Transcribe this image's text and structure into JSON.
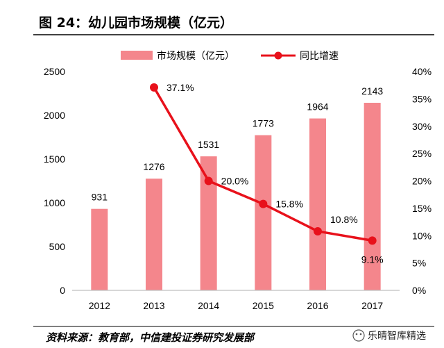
{
  "chart_data": {
    "type": "bar",
    "title": "图 24：幼儿园市场规模（亿元）",
    "categories": [
      "2012",
      "2013",
      "2014",
      "2015",
      "2016",
      "2017"
    ],
    "series": [
      {
        "name": "市场规模（亿元）",
        "type": "bar",
        "axis": "left",
        "values": [
          931,
          1276,
          1531,
          1773,
          1964,
          2143
        ]
      },
      {
        "name": "同比增速",
        "type": "line",
        "axis": "right",
        "values": [
          null,
          37.1,
          20.0,
          15.8,
          10.8,
          9.1
        ]
      }
    ],
    "bar_labels": [
      "931",
      "1276",
      "1531",
      "1773",
      "1964",
      "2143"
    ],
    "line_labels": [
      "",
      "37.1%",
      "20.0%",
      "15.8%",
      "10.8%",
      "9.1%"
    ],
    "y_left": {
      "min": 0,
      "max": 2500,
      "ticks": [
        "0",
        "500",
        "1000",
        "1500",
        "2000",
        "2500"
      ]
    },
    "y_right": {
      "min": 0,
      "max": 40,
      "ticks": [
        "0%",
        "5%",
        "10%",
        "15%",
        "20%",
        "25%",
        "30%",
        "35%",
        "40%"
      ]
    },
    "legend_position": "top",
    "grid": false
  },
  "source": "资料来源：教育部，中信建投证券研究发展部",
  "watermark": "乐晴智库精选",
  "colors": {
    "bar": "#f4868c",
    "line": "#e8111b",
    "title_rule": "#000000"
  }
}
